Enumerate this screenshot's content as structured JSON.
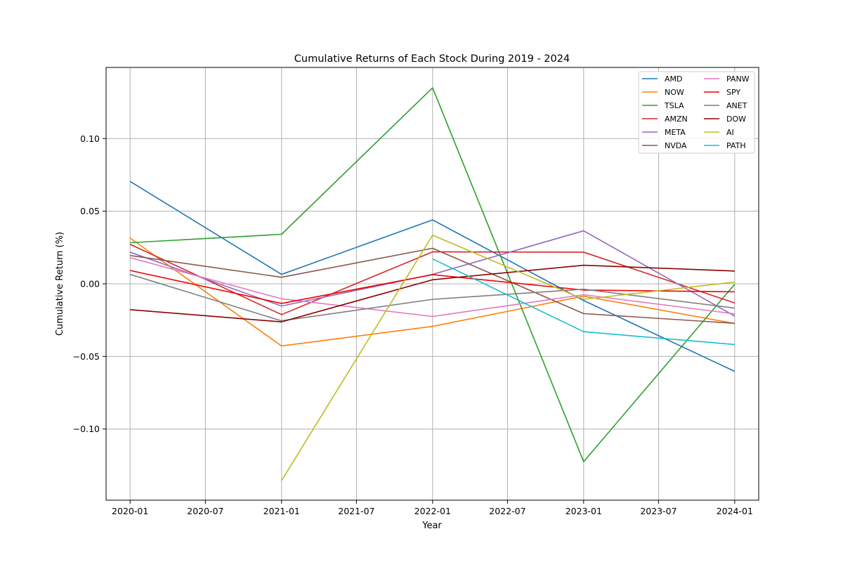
{
  "chart_data": {
    "type": "line",
    "title": "Cumulative Returns of Each Stock During 2019 - 2024",
    "xlabel": "Year",
    "ylabel": "Cumulative Return (%)",
    "x": [
      "2020-01-01",
      "2021-01-01",
      "2022-01-01",
      "2023-01-01",
      "2024-01-01"
    ],
    "xlim": [
      "2019-11-04",
      "2024-02-28"
    ],
    "ylim": [
      -0.149,
      0.149
    ],
    "xticks": [
      "2020-01",
      "2020-07",
      "2021-01",
      "2021-07",
      "2022-01",
      "2022-07",
      "2023-01",
      "2023-07",
      "2024-01"
    ],
    "yticks": [
      -0.1,
      -0.05,
      0.0,
      0.05,
      0.1
    ],
    "ytick_labels": [
      "−0.10",
      "−0.05",
      "0.00",
      "0.05",
      "0.10"
    ],
    "grid": true,
    "legend_position": "top-right",
    "legend_columns": 2,
    "series": [
      {
        "name": "AMD",
        "color": "#1f77b4",
        "values": [
          0.0705,
          0.0065,
          0.044,
          -0.0115,
          -0.0603
        ]
      },
      {
        "name": "NOW",
        "color": "#ff7f0e",
        "values": [
          0.0315,
          -0.0428,
          -0.0293,
          -0.0085,
          -0.0273
        ]
      },
      {
        "name": "TSLA",
        "color": "#2ca02c",
        "values": [
          0.0283,
          0.0341,
          0.135,
          -0.1225,
          -0.0003
        ]
      },
      {
        "name": "AMZN",
        "color": "#d62728",
        "values": [
          0.0272,
          -0.0212,
          0.022,
          0.0218,
          -0.0132
        ]
      },
      {
        "name": "META",
        "color": "#9467bd",
        "values": [
          0.0218,
          -0.0153,
          0.0065,
          0.0365,
          -0.0222
        ]
      },
      {
        "name": "NVDA",
        "color": "#8c564b",
        "values": [
          0.0195,
          0.0045,
          0.0245,
          -0.0205,
          -0.0272
        ]
      },
      {
        "name": "PANW",
        "color": "#e377c2",
        "values": [
          0.018,
          -0.0103,
          -0.0225,
          -0.0075,
          -0.0207
        ]
      },
      {
        "name": "SPY",
        "color": "#ee0000",
        "values": [
          0.0092,
          -0.0135,
          0.0063,
          -0.0043,
          -0.0055
        ]
      },
      {
        "name": "ANET",
        "color": "#7f7f7f",
        "values": [
          0.0065,
          -0.0255,
          -0.0107,
          -0.0037,
          -0.0167
        ]
      },
      {
        "name": "DOW",
        "color": "#8b0000",
        "values": [
          -0.0178,
          -0.0262,
          0.0028,
          0.0128,
          0.0088
        ]
      },
      {
        "name": "AI",
        "color": "#bcbd22",
        "values": [
          null,
          -0.1355,
          0.0335,
          -0.0107,
          0.0012
        ]
      },
      {
        "name": "PATH",
        "color": "#17becf",
        "values": [
          null,
          null,
          0.0172,
          -0.033,
          -0.0418
        ]
      }
    ]
  }
}
